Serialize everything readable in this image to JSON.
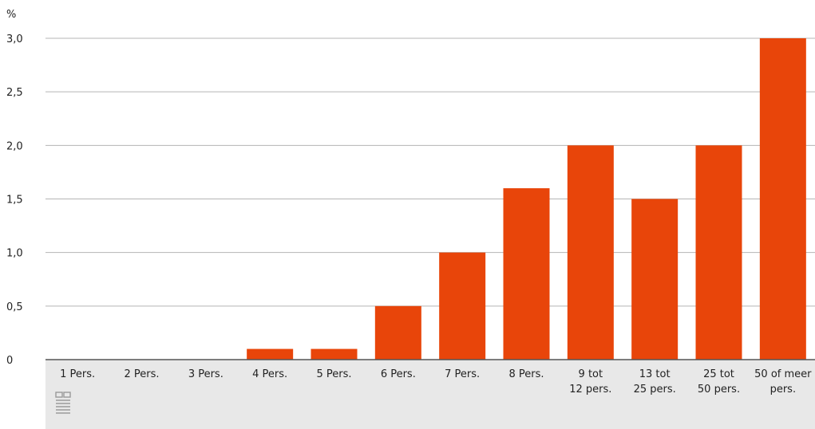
{
  "chart_data": {
    "type": "bar",
    "ylabel": "%",
    "categories": [
      [
        "1 Pers."
      ],
      [
        "2 Pers."
      ],
      [
        "3 Pers."
      ],
      [
        "4 Pers."
      ],
      [
        "5 Pers."
      ],
      [
        "6 Pers."
      ],
      [
        "7 Pers."
      ],
      [
        "8 Pers."
      ],
      [
        "9 tot",
        "12 pers."
      ],
      [
        "13 tot",
        "25 pers."
      ],
      [
        "25 tot",
        "50 pers."
      ],
      [
        "50 of meer",
        "pers."
      ]
    ],
    "values": [
      0,
      0,
      0,
      0.1,
      0.1,
      0.5,
      1.0,
      1.6,
      2.0,
      1.5,
      2.0,
      3.0
    ],
    "ylim": [
      0,
      3.0
    ],
    "yticks": [
      "0",
      "0,5",
      "1,0",
      "1,5",
      "2,0",
      "2,5",
      "3,0"
    ],
    "grid": true,
    "legend": "none",
    "bar_color": "#e8450a",
    "grid_color": "#b4b4b4",
    "axis_color": "#555555",
    "footer_color": "#e8e8e8",
    "logo_icon": "cbs-logo-icon"
  }
}
